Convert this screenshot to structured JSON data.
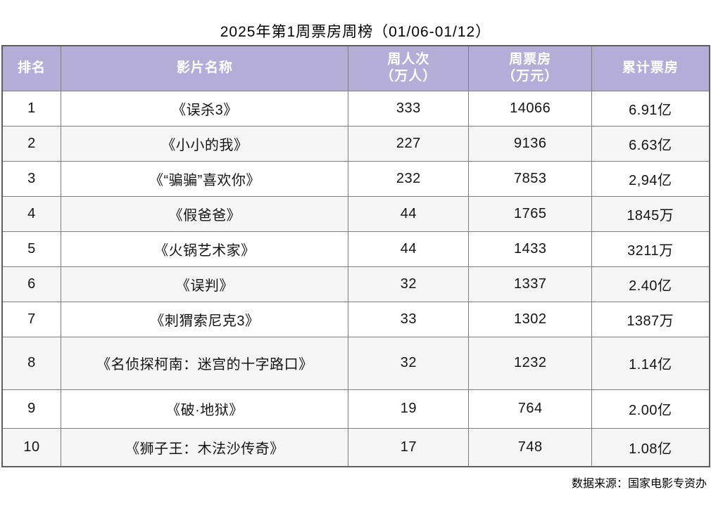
{
  "page": {
    "title": "2025年第1周票房周榜（01/06-01/12）",
    "source_note": "数据来源：国家电影专资办"
  },
  "colors": {
    "header_bg": "#b4add7",
    "header_text": "#ffffff",
    "alt_row_bg": "#f5f5f5",
    "border": "#7e7e7e",
    "text": "#141414"
  },
  "table": {
    "columns": [
      {
        "label": "排名"
      },
      {
        "label": "影片名称"
      },
      {
        "label": "周人次\n（万人）"
      },
      {
        "label": "周票房\n（万元）"
      },
      {
        "label": "累计票房"
      }
    ],
    "rows": [
      {
        "rank": "1",
        "title": "《误杀3》",
        "weekly_admissions": "333",
        "weekly_box_office": "14066",
        "total_box_office": "6.91亿"
      },
      {
        "rank": "2",
        "title": "《小小的我》",
        "weekly_admissions": "227",
        "weekly_box_office": "9136",
        "total_box_office": "6.63亿"
      },
      {
        "rank": "3",
        "title": "《“骗骗”喜欢你》",
        "weekly_admissions": "232",
        "weekly_box_office": "7853",
        "total_box_office": "2,94亿"
      },
      {
        "rank": "4",
        "title": "《假爸爸》",
        "weekly_admissions": "44",
        "weekly_box_office": "1765",
        "total_box_office": "1845万"
      },
      {
        "rank": "5",
        "title": "《火锅艺术家》",
        "weekly_admissions": "44",
        "weekly_box_office": "1433",
        "total_box_office": "3211万"
      },
      {
        "rank": "6",
        "title": "《误判》",
        "weekly_admissions": "32",
        "weekly_box_office": "1337",
        "total_box_office": "2.40亿"
      },
      {
        "rank": "7",
        "title": "《刺猬索尼克3》",
        "weekly_admissions": "33",
        "weekly_box_office": "1302",
        "total_box_office": "1387万"
      },
      {
        "rank": "8",
        "title": "《名侦探柯南：迷宫的十字路口》",
        "weekly_admissions": "32",
        "weekly_box_office": "1232",
        "total_box_office": "1.14亿"
      },
      {
        "rank": "9",
        "title": "《破·地狱》",
        "weekly_admissions": "19",
        "weekly_box_office": "764",
        "total_box_office": "2.00亿"
      },
      {
        "rank": "10",
        "title": "《狮子王：木法沙传奇》",
        "weekly_admissions": "17",
        "weekly_box_office": "748",
        "total_box_office": "1.08亿"
      }
    ]
  },
  "chart_data": {
    "type": "table",
    "title": "2025年第1周票房周榜（01/06-01/12）",
    "columns": [
      "排名",
      "影片名称",
      "周人次（万人）",
      "周票房（万元）",
      "累计票房"
    ],
    "rows": [
      [
        1,
        "《误杀3》",
        333,
        14066,
        "6.91亿"
      ],
      [
        2,
        "《小小的我》",
        227,
        9136,
        "6.63亿"
      ],
      [
        3,
        "《“骗骗”喜欢你》",
        232,
        7853,
        "2,94亿"
      ],
      [
        4,
        "《假爸爸》",
        44,
        1765,
        "1845万"
      ],
      [
        5,
        "《火锅艺术家》",
        44,
        1433,
        "3211万"
      ],
      [
        6,
        "《误判》",
        32,
        1337,
        "2.40亿"
      ],
      [
        7,
        "《刺猬索尼克3》",
        33,
        1302,
        "1387万"
      ],
      [
        8,
        "《名侦探柯南：迷宫的十字路口》",
        32,
        1232,
        "1.14亿"
      ],
      [
        9,
        "《破·地狱》",
        19,
        764,
        "2.00亿"
      ],
      [
        10,
        "《狮子王：木法沙传奇》",
        17,
        748,
        "1.08亿"
      ]
    ],
    "source": "数据来源：国家电影专资办",
    "layout": {
      "striped_rows": true,
      "header_color": "#b4add7"
    }
  }
}
